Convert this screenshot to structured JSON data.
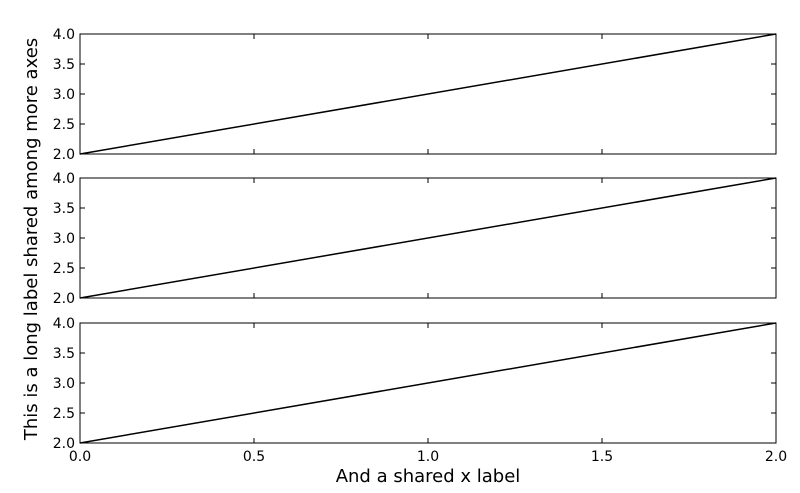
{
  "chart_data": {
    "type": "line",
    "shared_xlabel": "And a shared x label",
    "shared_ylabel": "This is a long label shared among more axes",
    "xlim": [
      0.0,
      2.0
    ],
    "x_ticks": [
      0.0,
      0.5,
      1.0,
      1.5,
      2.0
    ],
    "x_tick_labels": [
      "0.0",
      "0.5",
      "1.0",
      "1.5",
      "2.0"
    ],
    "grid": false,
    "subplots": [
      {
        "ylim": [
          2.0,
          4.0
        ],
        "y_ticks": [
          2.0,
          2.5,
          3.0,
          3.5,
          4.0
        ],
        "y_tick_labels": [
          "2.0",
          "2.5",
          "3.0",
          "3.5",
          "4.0"
        ],
        "series": [
          {
            "x": [
              0.0,
              2.0
            ],
            "y": [
              2.0,
              4.0
            ],
            "color": "#000000"
          }
        ]
      },
      {
        "ylim": [
          2.0,
          4.0
        ],
        "y_ticks": [
          2.0,
          2.5,
          3.0,
          3.5,
          4.0
        ],
        "y_tick_labels": [
          "2.0",
          "2.5",
          "3.0",
          "3.5",
          "4.0"
        ],
        "series": [
          {
            "x": [
              0.0,
              2.0
            ],
            "y": [
              2.0,
              4.0
            ],
            "color": "#000000"
          }
        ]
      },
      {
        "ylim": [
          2.0,
          4.0
        ],
        "y_ticks": [
          2.0,
          2.5,
          3.0,
          3.5,
          4.0
        ],
        "y_tick_labels": [
          "2.0",
          "2.5",
          "3.0",
          "3.5",
          "4.0"
        ],
        "series": [
          {
            "x": [
              0.0,
              2.0
            ],
            "y": [
              2.0,
              4.0
            ],
            "color": "#000000"
          }
        ]
      }
    ]
  }
}
